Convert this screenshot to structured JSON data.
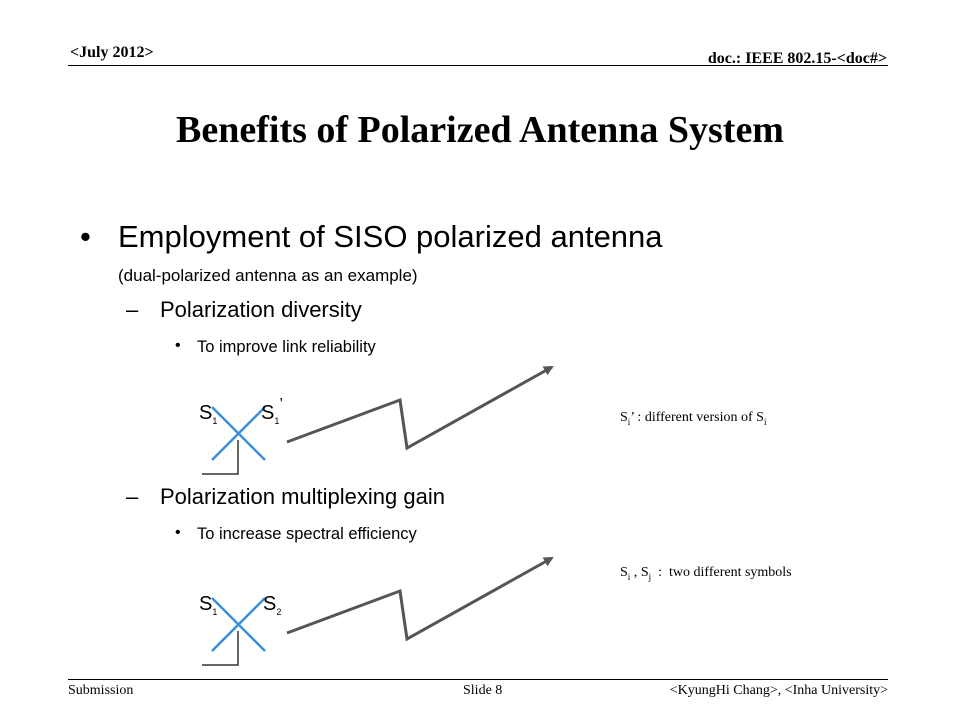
{
  "header": {
    "date": "<July 2012>",
    "doc": "doc.: IEEE 802.15-<doc#>"
  },
  "title": "Benefits of Polarized Antenna System",
  "bullets": {
    "main": "Employment of SISO polarized antenna",
    "main_note": "(dual-polarized antenna as an example)",
    "diversity": {
      "heading": "Polarization diversity",
      "item": "To improve link reliability"
    },
    "multiplexing": {
      "heading": "Polarization multiplexing gain",
      "item": "To increase spectral efficiency"
    }
  },
  "diagram1": {
    "left_symbol": "S",
    "left_sub": "1",
    "right_symbol": "S",
    "right_sub": "1",
    "right_prime": "’",
    "legend_s": "S",
    "legend_sub": "i",
    "legend_rest": "’ :  different version of  S",
    "legend_sub2": "i"
  },
  "diagram2": {
    "left_symbol": "S",
    "left_sub": "1",
    "right_symbol": "S",
    "right_sub": "2",
    "legend_s1": "S",
    "legend_sub1": "i",
    "legend_mid": " , S",
    "legend_sub2": "j",
    "legend_rest": "  :  two different symbols"
  },
  "footer": {
    "left": "Submission",
    "center": "Slide 8",
    "right": "<KyungHi Chang>, <Inha University>"
  },
  "colors": {
    "antenna": "#3a8fd8",
    "arrow": "#555555"
  }
}
